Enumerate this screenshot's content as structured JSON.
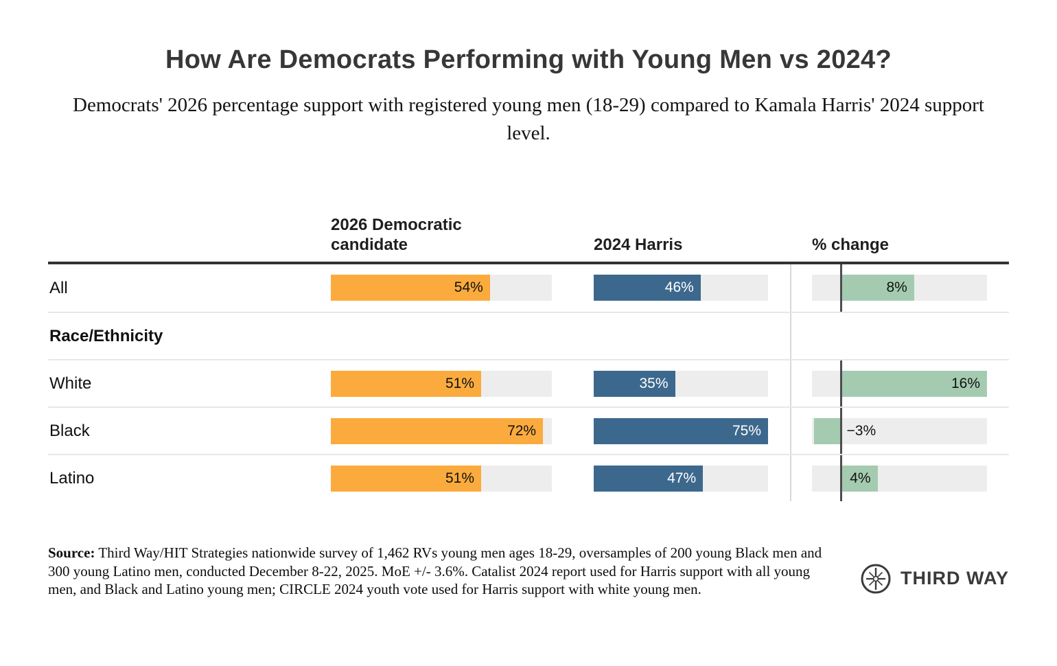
{
  "title": "How Are Democrats Performing with Young Men vs 2024?",
  "subtitle": "Democrats' 2026 percentage support with registered young men (18-29) compared to Kamala Harris' 2024 support level.",
  "chart_data": {
    "type": "bar",
    "orientation": "horizontal",
    "title": "How Are Democrats Performing with Young Men vs 2024?",
    "columns": [
      "2026 Democratic candidate",
      "2024 Harris",
      "% change"
    ],
    "categories": [
      "All",
      "White",
      "Black",
      "Latino"
    ],
    "series": [
      {
        "name": "2026 Democratic candidate",
        "values": [
          54,
          51,
          72,
          51
        ]
      },
      {
        "name": "2024 Harris",
        "values": [
          46,
          35,
          75,
          47
        ]
      },
      {
        "name": "% change",
        "values": [
          8,
          16,
          -3,
          4
        ]
      }
    ],
    "rows": [
      {
        "label": "All",
        "dem2026": 54,
        "harris2024": 46,
        "change": 8
      },
      {
        "label": "Race/Ethnicity",
        "section": true
      },
      {
        "label": "White",
        "dem2026": 51,
        "harris2024": 35,
        "change": 16
      },
      {
        "label": "Black",
        "dem2026": 72,
        "harris2024": 75,
        "change": -3
      },
      {
        "label": "Latino",
        "dem2026": 51,
        "harris2024": 47,
        "change": 4
      },
      {
        "label": "Race/Ethnicity",
        "section": true,
        "note": "section header row, no bars"
      }
    ],
    "support_axis": {
      "min": 0,
      "max": 75
    },
    "change_axis": {
      "min": -3.2,
      "max": 16,
      "zero_line": true
    },
    "value_suffix": "%",
    "grid": "row dividers only",
    "legend": "none (column headers act as legend)"
  },
  "colors": {
    "bar_2026": "#FBAB3D",
    "bar_2024": "#3D688D",
    "bar_change": "#A4CBB0",
    "track": "#EDEDED",
    "zero_line": "#4D4D4D",
    "header_rule": "#333333",
    "row_divider": "#E7E7E7",
    "column_divider": "#D8D8D8",
    "title_text": "#373737",
    "logo_text": "#3A3A3C"
  },
  "source": {
    "label": "Source:",
    "text": "Third Way/HIT Strategies nationwide survey of 1,462 RVs young men ages 18-29, oversamples of 200 young Black men and 300 young Latino men, conducted December 8-22, 2025. MoE +/- 3.6%. Catalist 2024 report used for Harris support with all young men, and Black and Latino young men; CIRCLE 2024 youth vote used for Harris support with white young men."
  },
  "logo": {
    "icon": "compass-star-icon",
    "text": "THIRD WAY"
  }
}
